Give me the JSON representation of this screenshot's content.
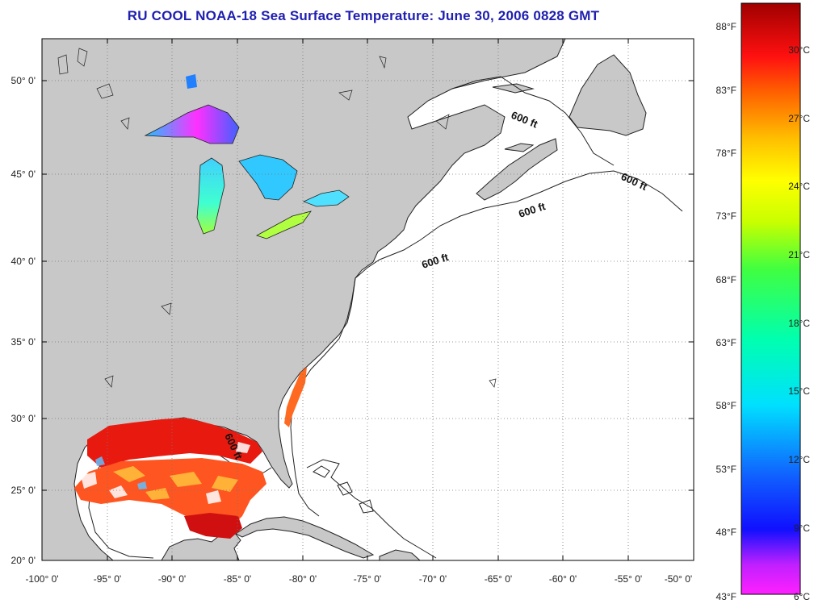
{
  "title": "RU COOL  NOAA-18  Sea Surface Temperature:  June 30, 2006 0828 GMT",
  "map": {
    "lon_labels": [
      "-100° 0'",
      "-95° 0'",
      "-90° 0'",
      "-85° 0'",
      "-80° 0'",
      "-75° 0'",
      "-70° 0'",
      "-65° 0'",
      "-60° 0'",
      "-55° 0'",
      "-50° 0'"
    ],
    "lat_labels": [
      "50° 0'",
      "45° 0'",
      "40° 0'",
      "35° 0'",
      "30° 0'",
      "25° 0'",
      "20° 0'"
    ],
    "contour_labels": [
      "600 ft",
      "600 ft",
      "600 ft",
      "600 ft",
      "600 ft"
    ],
    "colors": {
      "land": "#c8c8c8",
      "ocean": "#ffffff",
      "grid": "#666666"
    }
  },
  "colorbar": {
    "fahrenheit_labels": [
      "88°F",
      "83°F",
      "78°F",
      "73°F",
      "68°F",
      "63°F",
      "58°F",
      "53°F",
      "48°F",
      "43°F"
    ],
    "celsius_labels": [
      "30°C",
      "27°C",
      "24°C",
      "21°C",
      "18°C",
      "15°C",
      "12°C",
      "9°C",
      "6°C"
    ]
  }
}
